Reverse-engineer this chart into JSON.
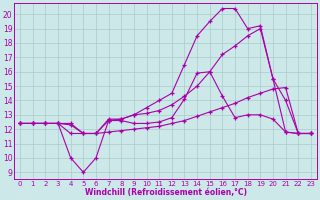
{
  "background_color": "#cce8e8",
  "line_color": "#aa00aa",
  "grid_color": "#aacccc",
  "xlabel": "Windchill (Refroidissement éolien,°C)",
  "xlabel_color": "#aa00aa",
  "yticks": [
    9,
    10,
    11,
    12,
    13,
    14,
    15,
    16,
    17,
    18,
    19,
    20
  ],
  "xticks": [
    0,
    1,
    2,
    3,
    4,
    5,
    6,
    7,
    8,
    9,
    10,
    11,
    12,
    13,
    14,
    15,
    16,
    17,
    18,
    19,
    20,
    21,
    22,
    23
  ],
  "xlim": [
    -0.5,
    23.5
  ],
  "ylim": [
    8.5,
    20.8
  ],
  "line1_x": [
    0,
    1,
    2,
    3,
    4,
    5,
    6,
    7,
    8,
    9,
    10,
    11,
    12,
    13,
    14,
    15,
    16,
    17,
    18,
    19,
    20,
    21,
    22,
    23
  ],
  "line1_y": [
    12.4,
    12.4,
    12.4,
    12.4,
    10.0,
    9.0,
    10.0,
    12.6,
    12.6,
    12.4,
    12.4,
    12.5,
    12.8,
    14.1,
    15.9,
    16.0,
    14.3,
    12.8,
    13.0,
    13.0,
    12.7,
    11.8,
    11.7,
    11.7
  ],
  "line2_x": [
    0,
    1,
    2,
    3,
    4,
    5,
    6,
    7,
    8,
    9,
    10,
    11,
    12,
    13,
    14,
    15,
    16,
    17,
    18,
    19,
    20,
    21,
    22,
    23
  ],
  "line2_y": [
    12.4,
    12.4,
    12.4,
    12.4,
    11.7,
    11.7,
    11.7,
    11.8,
    11.9,
    12.0,
    12.1,
    12.2,
    12.4,
    12.6,
    12.9,
    13.2,
    13.5,
    13.8,
    14.2,
    14.5,
    14.8,
    14.9,
    11.7,
    11.7
  ],
  "line3_x": [
    0,
    1,
    2,
    3,
    4,
    5,
    6,
    7,
    8,
    9,
    10,
    11,
    12,
    13,
    14,
    15,
    16,
    17,
    18,
    19,
    20,
    21,
    22,
    23
  ],
  "line3_y": [
    12.4,
    12.4,
    12.4,
    12.4,
    12.3,
    11.7,
    11.7,
    12.6,
    12.7,
    13.0,
    13.5,
    14.0,
    14.5,
    16.5,
    18.5,
    19.5,
    20.4,
    20.4,
    19.0,
    19.2,
    15.5,
    11.8,
    11.7,
    11.7
  ],
  "line4_x": [
    0,
    1,
    2,
    3,
    4,
    5,
    6,
    7,
    8,
    9,
    10,
    11,
    12,
    13,
    14,
    15,
    16,
    17,
    18,
    19,
    20,
    21,
    22,
    23
  ],
  "line4_y": [
    12.4,
    12.4,
    12.4,
    12.4,
    12.4,
    11.7,
    11.7,
    12.7,
    12.7,
    13.0,
    13.1,
    13.3,
    13.7,
    14.3,
    15.0,
    16.0,
    17.2,
    17.8,
    18.5,
    19.0,
    15.5,
    14.0,
    11.7,
    11.7
  ]
}
